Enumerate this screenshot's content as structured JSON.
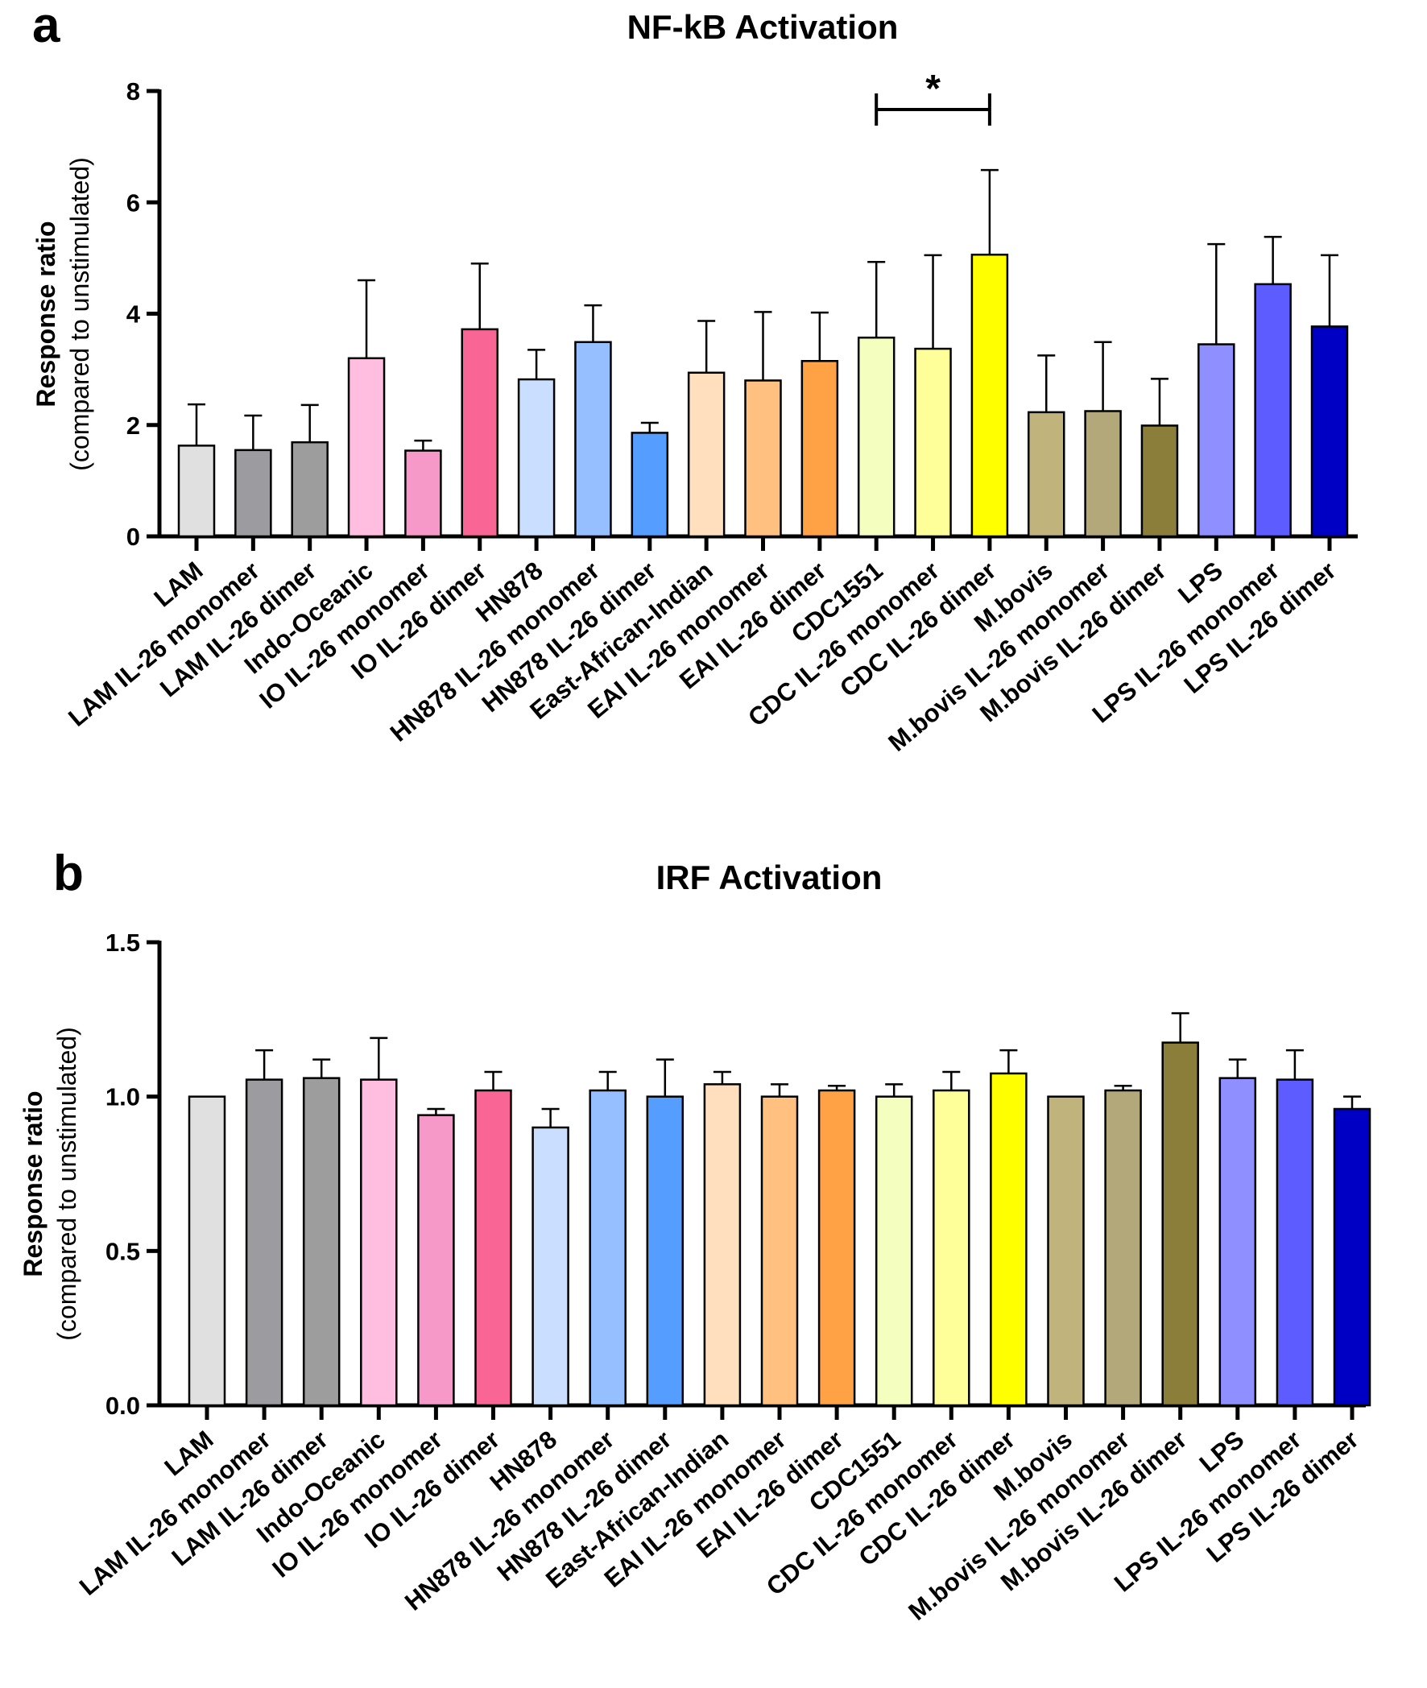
{
  "chart_data": [
    {
      "type": "bar",
      "panel": "a",
      "title": "NF-kB Activation",
      "ylabel": "Response ratio",
      "ylabel_sub": "(compared to unstimulated)",
      "ylim": [
        0,
        8
      ],
      "yticks": [
        0,
        2,
        4,
        6,
        8
      ],
      "ytick_labels": [
        "0",
        "2",
        "4",
        "6",
        "8"
      ],
      "categories": [
        "LAM",
        "LAM IL-26 monomer",
        "LAM IL-26 dimer",
        "Indo-Oceanic",
        "IO IL-26 monomer",
        "IO IL-26 dimer",
        "HN878",
        "HN878 IL-26 monomer",
        "HN878 IL-26 dimer",
        "East-African-Indian",
        "EAI IL-26 monomer",
        "EAI IL-26 dimer",
        "CDC1551",
        "CDC IL-26 monomer",
        "CDC IL-26 dimer",
        "M.bovis",
        "M.bovis IL-26 monomer",
        "M.bovis IL-26 dimer",
        "LPS",
        "LPS IL-26 monomer",
        "LPS IL-26 dimer"
      ],
      "values": [
        1.63,
        1.55,
        1.69,
        3.2,
        1.54,
        3.72,
        2.82,
        3.49,
        1.86,
        2.94,
        2.8,
        3.15,
        3.57,
        3.37,
        5.06,
        2.23,
        2.25,
        1.99,
        3.45,
        4.53,
        3.77
      ],
      "errors": [
        0.74,
        0.62,
        0.67,
        1.4,
        0.18,
        1.18,
        0.53,
        0.66,
        0.18,
        0.93,
        1.23,
        0.87,
        1.36,
        1.68,
        1.52,
        1.02,
        1.24,
        0.84,
        1.8,
        0.85,
        1.28
      ],
      "colors": [
        "#e0e0e0",
        "#9c9ca0",
        "#9d9d9d",
        "#ffbde0",
        "#f799c8",
        "#f96595",
        "#cadfff",
        "#95bfff",
        "#559dff",
        "#ffdfbd",
        "#ffc080",
        "#ffa145",
        "#f4ffbf",
        "#ffff99",
        "#ffff00",
        "#c0b47c",
        "#b2a87a",
        "#8b7d3a",
        "#8f8fff",
        "#5c5cff",
        "#0000c4"
      ],
      "significance": [
        {
          "from": 12,
          "to": 14,
          "label": "*"
        }
      ],
      "grid": false
    },
    {
      "type": "bar",
      "panel": "b",
      "title": "IRF Activation",
      "ylabel": "Response ratio",
      "ylabel_sub": "(compared to unstimulated)",
      "ylim": [
        0,
        1.5
      ],
      "yticks": [
        0,
        0.5,
        1,
        1.5
      ],
      "ytick_labels": [
        "0.0",
        "0.5",
        "1.0",
        "1.5"
      ],
      "categories": [
        "LAM",
        "LAM IL-26 monomer",
        "LAM IL-26 dimer",
        "Indo-Oceanic",
        "IO IL-26 monomer",
        "IO IL-26 dimer",
        "HN878",
        "HN878 IL-26 monomer",
        "HN878 IL-26 dimer",
        "East-African-Indian",
        "EAI IL-26 monomer",
        "EAI IL-26 dimer",
        "CDC1551",
        "CDC IL-26 monomer",
        "CDC IL-26 dimer",
        "M.bovis",
        "M.bovis IL-26 monomer",
        "M.bovis IL-26 dimer",
        "LPS",
        "LPS IL-26 monomer",
        "LPS IL-26 dimer"
      ],
      "values": [
        1.0,
        1.055,
        1.06,
        1.055,
        0.94,
        1.02,
        0.9,
        1.02,
        1.0,
        1.04,
        1.0,
        1.02,
        1.0,
        1.02,
        1.075,
        1.0,
        1.02,
        1.175,
        1.06,
        1.055,
        0.96
      ],
      "errors": [
        0,
        0.095,
        0.06,
        0.135,
        0.02,
        0.06,
        0.06,
        0.06,
        0.12,
        0.04,
        0.04,
        0.015,
        0.04,
        0.06,
        0.075,
        0,
        0.015,
        0.095,
        0.06,
        0.095,
        0.04
      ],
      "colors": [
        "#e0e0e0",
        "#9c9ca0",
        "#9d9d9d",
        "#ffbde0",
        "#f799c8",
        "#f96595",
        "#cadfff",
        "#95bfff",
        "#559dff",
        "#ffdfbd",
        "#ffc080",
        "#ffa145",
        "#f4ffbf",
        "#ffff99",
        "#ffff00",
        "#c0b47c",
        "#b2a87a",
        "#8b7d3a",
        "#8f8fff",
        "#5c5cff",
        "#0000c4"
      ],
      "significance": [],
      "grid": false
    }
  ]
}
